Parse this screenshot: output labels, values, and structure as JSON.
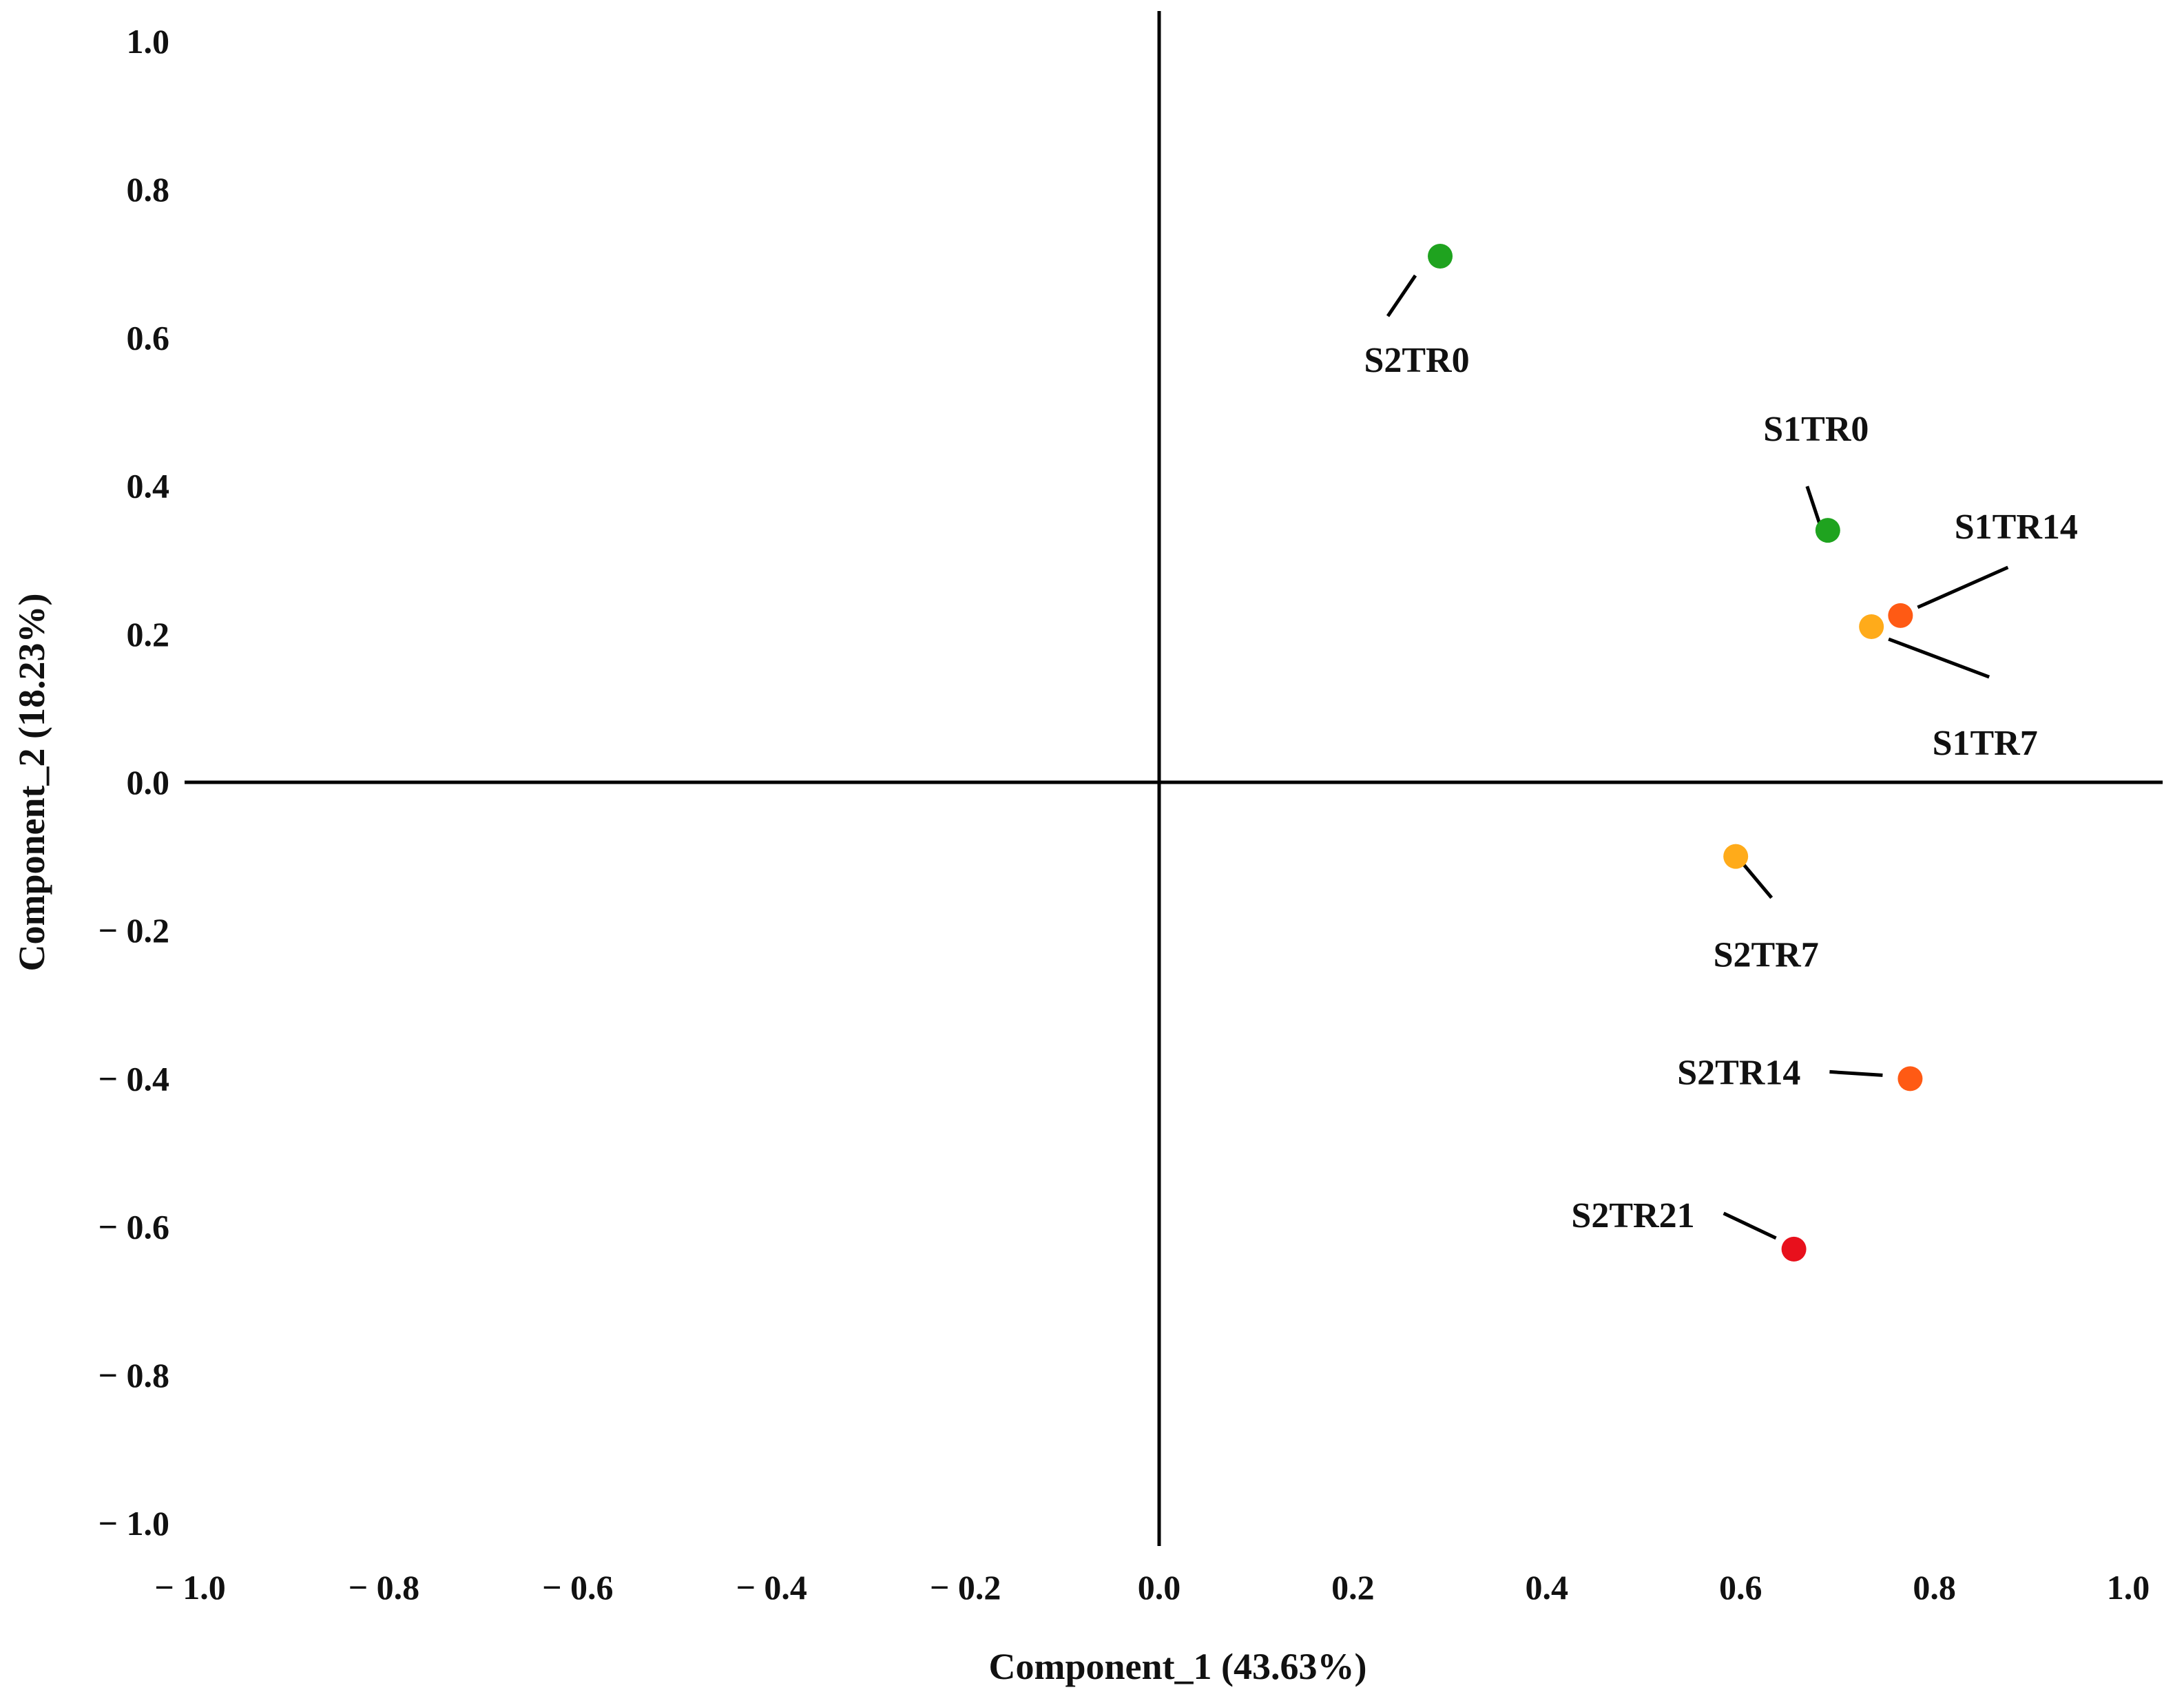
{
  "chart_data": {
    "type": "scatter",
    "title": "",
    "xlabel": "Component_1 (43.63%)",
    "ylabel": "Component_2 (18.23%)",
    "xlim": [
      -1.0,
      1.0
    ],
    "ylim": [
      -1.0,
      1.0
    ],
    "grid": false,
    "axes_through_origin": true,
    "x_ticks": [
      -1.0,
      -0.8,
      -0.6,
      -0.4,
      -0.2,
      0.0,
      0.2,
      0.4,
      0.6,
      0.8,
      1.0
    ],
    "x_tick_labels": [
      "− 1.0",
      "− 0.8",
      "− 0.6",
      "− 0.4",
      "− 0.2",
      "0.0",
      "0.2",
      "0.4",
      "0.6",
      "0.8",
      "1.0"
    ],
    "y_ticks": [
      1.0,
      0.8,
      0.6,
      0.4,
      0.2,
      0.0,
      -0.2,
      -0.4,
      -0.6,
      -0.8,
      -1.0
    ],
    "y_tick_labels": [
      "1.0",
      "0.8",
      "0.6",
      "0.4",
      "0.2",
      "0.0",
      "− 0.2",
      "− 0.4",
      "− 0.6",
      "− 0.8",
      "− 1.0"
    ],
    "points": [
      {
        "label": "S2TR0",
        "x": 0.29,
        "y": 0.71,
        "color": "#1fa31f",
        "label_side": "below-left"
      },
      {
        "label": "S1TR0",
        "x": 0.69,
        "y": 0.34,
        "color": "#1fa31f",
        "label_side": "above-left"
      },
      {
        "label": "S1TR14",
        "x": 0.765,
        "y": 0.225,
        "color": "#ff5a14",
        "label_side": "upper-right"
      },
      {
        "label": "S1TR7",
        "x": 0.735,
        "y": 0.21,
        "color": "#ffab1a",
        "label_side": "lower-right"
      },
      {
        "label": "S2TR7",
        "x": 0.595,
        "y": -0.1,
        "color": "#ffab1a",
        "label_side": "below-right"
      },
      {
        "label": "S2TR14",
        "x": 0.775,
        "y": -0.4,
        "color": "#ff5a14",
        "label_side": "left"
      },
      {
        "label": "S2TR21",
        "x": 0.655,
        "y": -0.63,
        "color": "#e8101c",
        "label_side": "upper-left"
      }
    ]
  }
}
